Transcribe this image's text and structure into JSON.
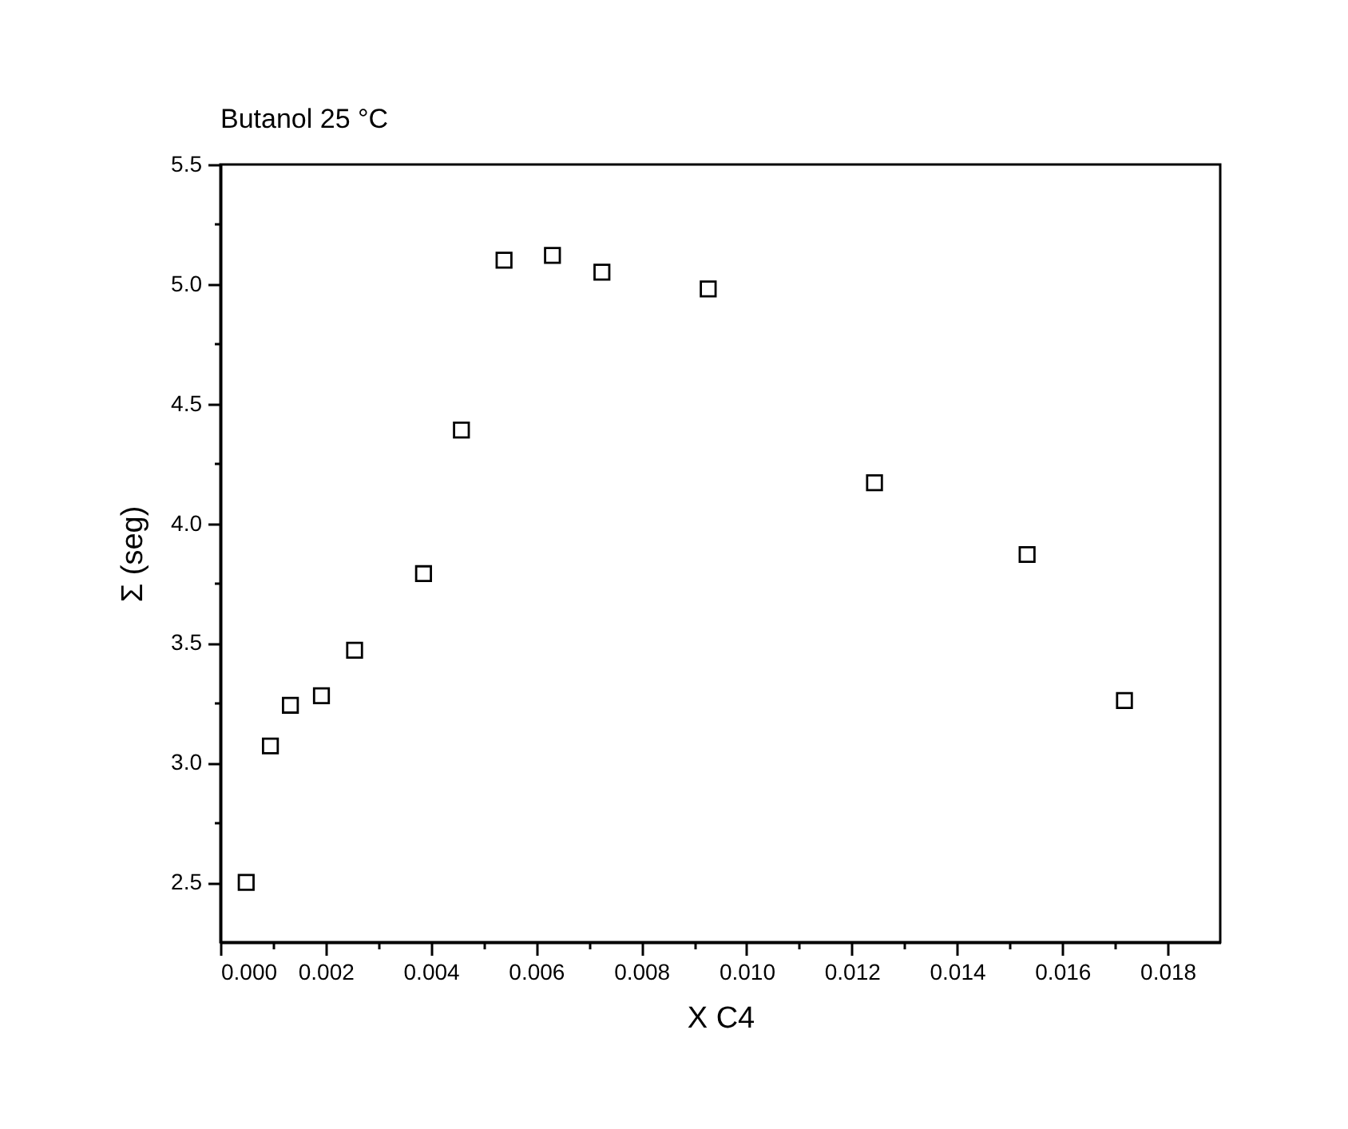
{
  "chart_data": {
    "type": "scatter",
    "title": "Butanol 25 °C",
    "xlabel": "X  C4",
    "ylabel": "Σ (seg)",
    "x": [
      0.00049,
      0.00095,
      0.00133,
      0.00192,
      0.00255,
      0.00386,
      0.00458,
      0.00539,
      0.00631,
      0.00725,
      0.00927,
      0.01243,
      0.01533,
      0.01718
    ],
    "series": [
      {
        "color": "#000000",
        "values": [
          2.5,
          3.07,
          3.24,
          3.28,
          3.47,
          3.79,
          4.39,
          5.1,
          5.12,
          5.05,
          4.98,
          4.17,
          3.87,
          3.26
        ]
      }
    ],
    "marker": "square",
    "xlim": [
      0,
      0.019
    ],
    "xticks": [
      {
        "value": 0,
        "label": "0.000"
      },
      {
        "value": 0.001,
        "label": null
      },
      {
        "value": 0.002,
        "label": "0.002"
      },
      {
        "value": 0.003,
        "label": null
      },
      {
        "value": 0.004,
        "label": "0.004"
      },
      {
        "value": 0.005,
        "label": null
      },
      {
        "value": 0.006,
        "label": "0.006"
      },
      {
        "value": 0.007,
        "label": null
      },
      {
        "value": 0.008,
        "label": "0.008"
      },
      {
        "value": 0.009,
        "label": null
      },
      {
        "value": 0.01,
        "label": "0.010"
      },
      {
        "value": 0.011,
        "label": null
      },
      {
        "value": 0.012,
        "label": "0.012"
      },
      {
        "value": 0.013,
        "label": null
      },
      {
        "value": 0.014,
        "label": "0.014"
      },
      {
        "value": 0.015,
        "label": null
      },
      {
        "value": 0.016,
        "label": "0.016"
      },
      {
        "value": 0.017,
        "label": null
      },
      {
        "value": 0.018,
        "label": "0.018"
      }
    ],
    "ylim": [
      2.25,
      5.5
    ],
    "yticks": [
      {
        "value": 2.5,
        "label": "2.5"
      },
      {
        "value": 2.75,
        "label": null
      },
      {
        "value": 3,
        "label": "3.0"
      },
      {
        "value": 3.25,
        "label": null
      },
      {
        "value": 3.5,
        "label": "3.5"
      },
      {
        "value": 3.75,
        "label": null
      },
      {
        "value": 4,
        "label": "4.0"
      },
      {
        "value": 4.25,
        "label": null
      },
      {
        "value": 4.5,
        "label": "4.5"
      },
      {
        "value": 4.75,
        "label": null
      },
      {
        "value": 5,
        "label": "5.0"
      },
      {
        "value": 5.25,
        "label": null
      },
      {
        "value": 5.5,
        "label": "5.5"
      }
    ],
    "grid": false
  }
}
